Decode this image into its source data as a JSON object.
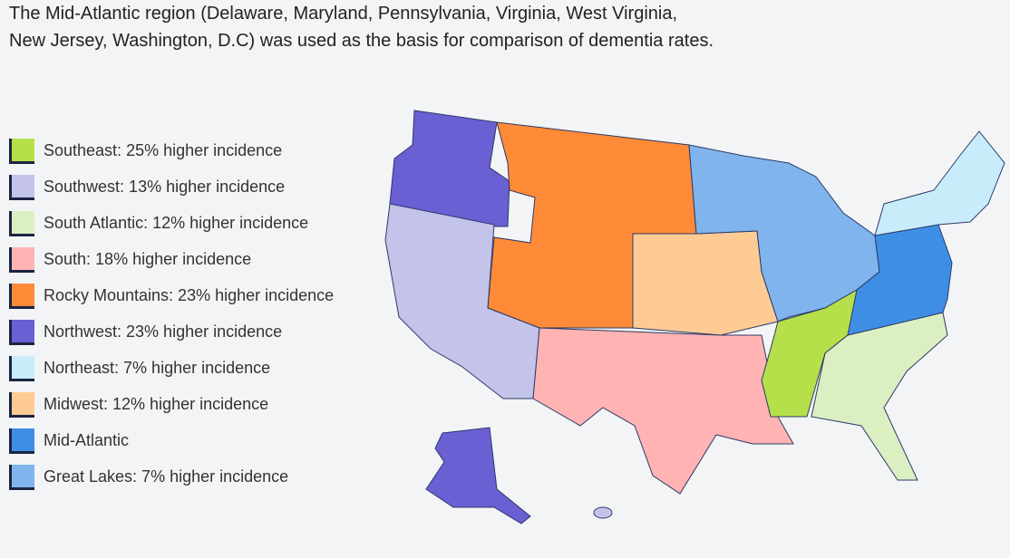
{
  "title_lines": [
    "The Mid-Atlantic region (Delaware, Maryland, Pennsylvania, Virginia, West Virginia,",
    "New Jersey, Washington, D.C) was used as the basis for comparison of dementia rates."
  ],
  "legend": [
    {
      "label": "Southeast: 25% higher incidence",
      "color": "#b5e04a"
    },
    {
      "label": "Southwest: 13% higher incidence",
      "color": "#c4c3ea"
    },
    {
      "label": "South Atlantic: 12% higher incidence",
      "color": "#dcefc3"
    },
    {
      "label": "South: 18% higher incidence",
      "color": "#ffb3b3"
    },
    {
      "label": "Rocky Mountains: 23% higher incidence",
      "color": "#ff8a38"
    },
    {
      "label": "Northwest: 23% higher incidence",
      "color": "#6a5fd3"
    },
    {
      "label": "Northeast: 7% higher incidence",
      "color": "#c9ecfb"
    },
    {
      "label": "Midwest: 12% higher incidence",
      "color": "#ffcb95"
    },
    {
      "label": "Mid-Atlantic",
      "color": "#3f8ee6"
    },
    {
      "label": "Great Lakes: 7% higher incidence",
      "color": "#80b4ec"
    }
  ]
}
